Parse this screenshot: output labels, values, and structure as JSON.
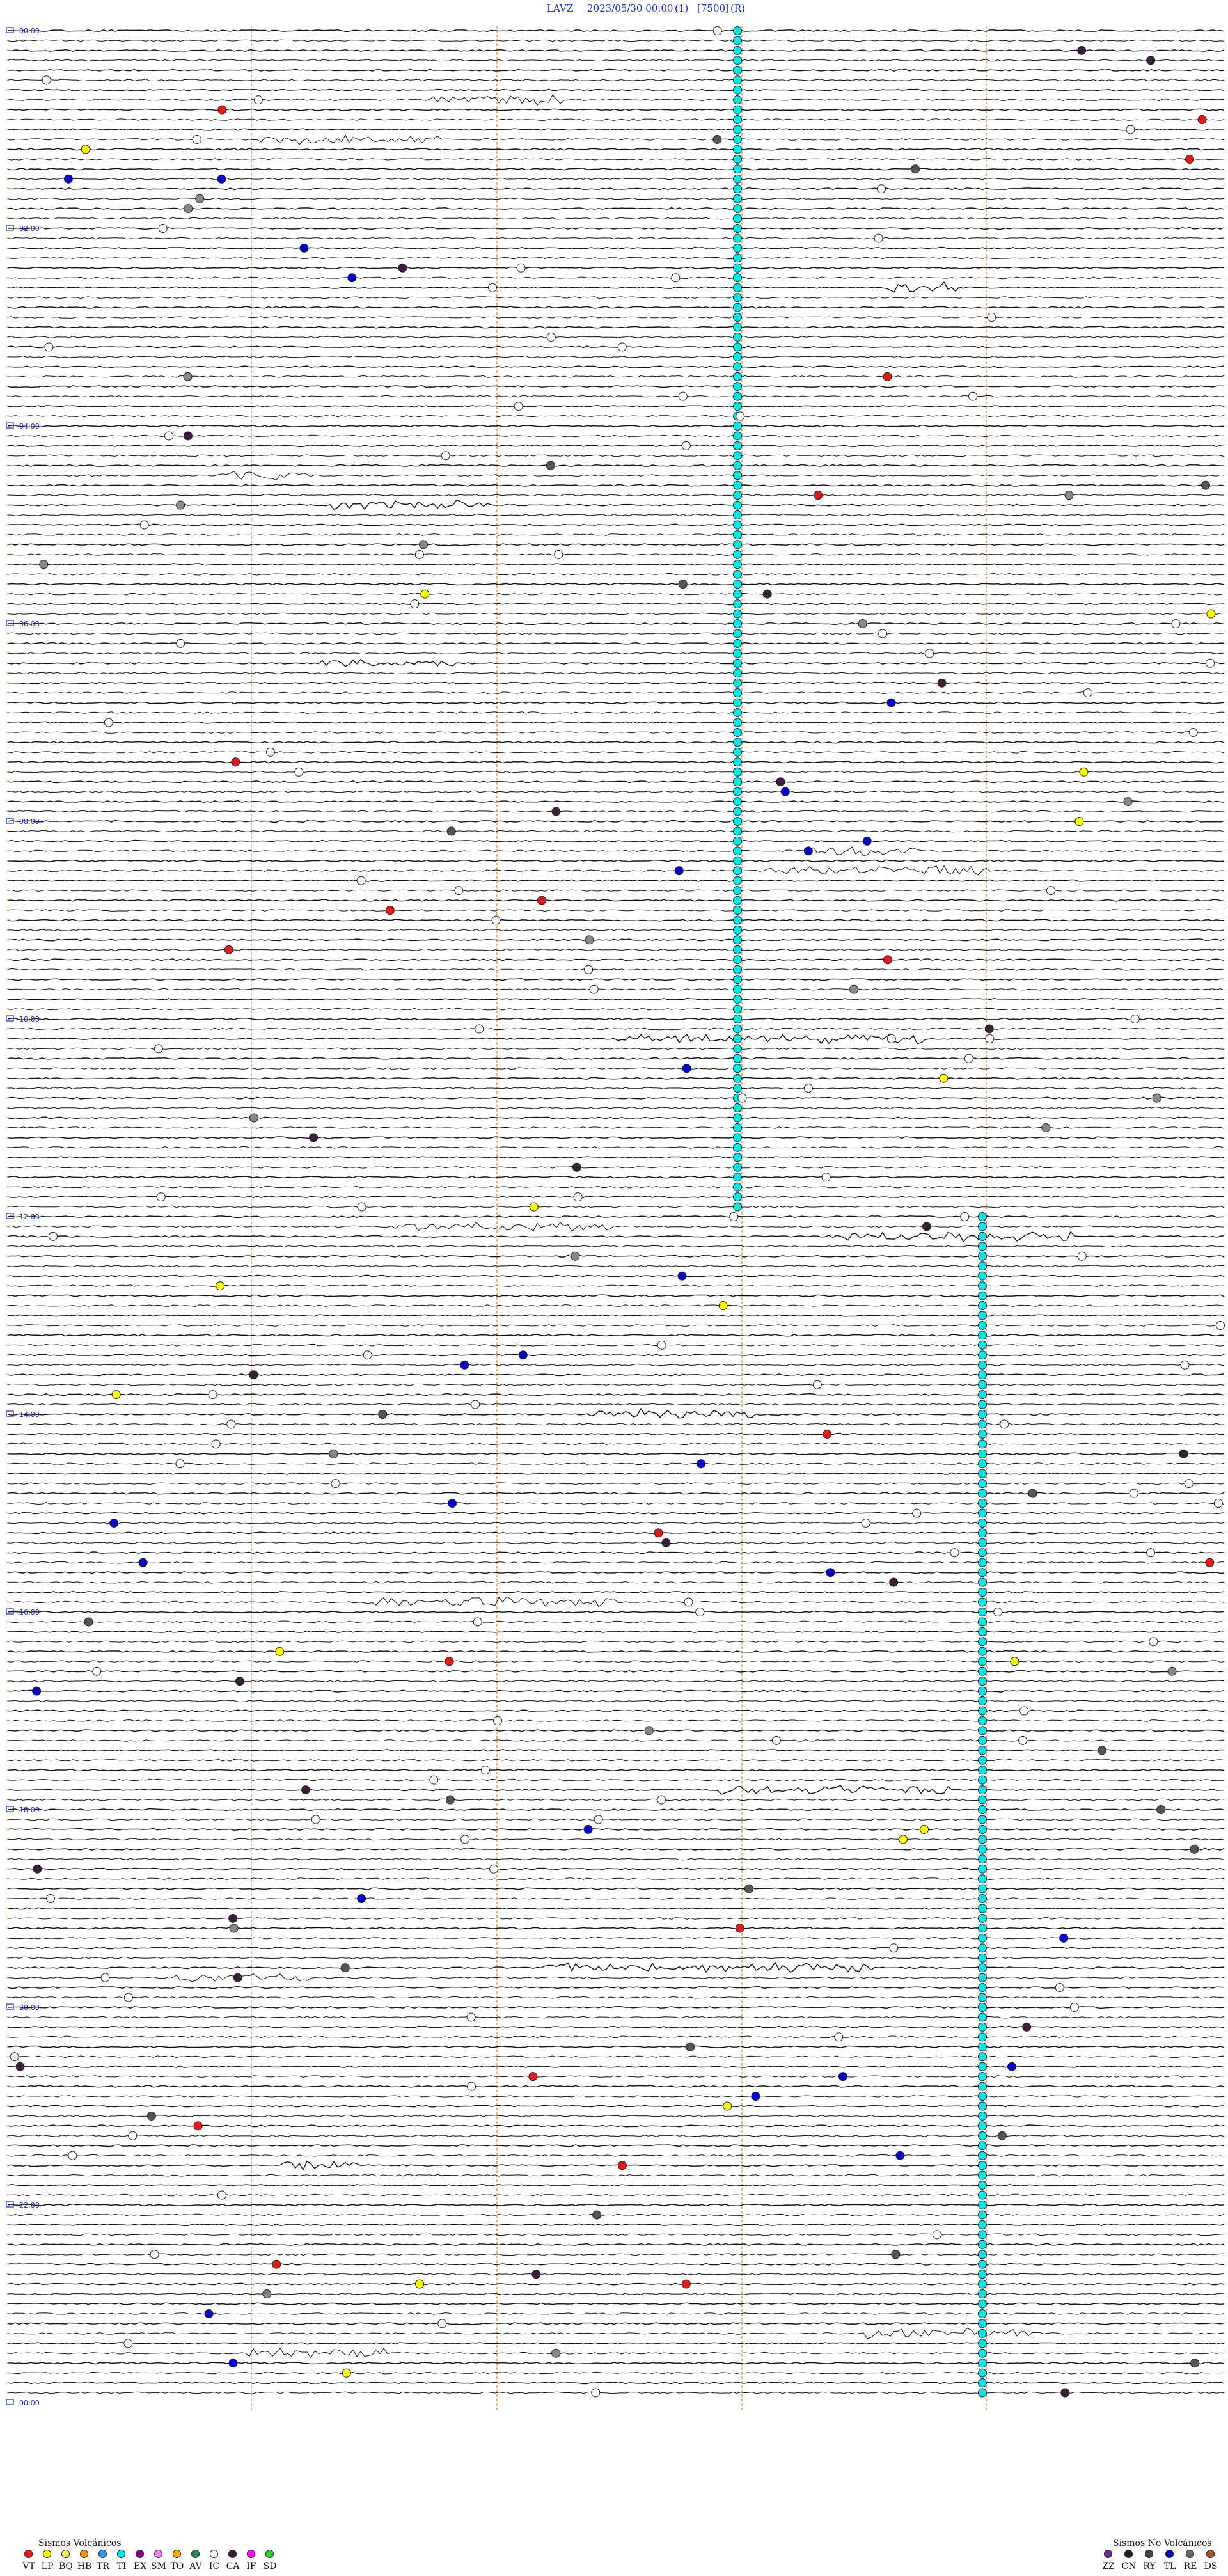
{
  "header": {
    "station": "LAVZ",
    "datetime": "2023/05/30 00:00",
    "channel": "(1)",
    "scale": "[7500]",
    "mode": "(R)"
  },
  "colors": {
    "trace": "#111111",
    "hour_label": "#1a2fb0",
    "minute_label": "#d2691e",
    "guide_line": "#e09a5a",
    "tremor_marker": "#00e5e5"
  },
  "hour_labels": [
    "00:00",
    "02:00",
    "04:00",
    "06:00",
    "08:00",
    "10:00",
    "12:00",
    "14:00",
    "16:00",
    "18:00",
    "20:00",
    "22:00",
    "00:00"
  ],
  "legend": {
    "volcanic_title": "Sismos Volcánicos",
    "volcanic": [
      {
        "code": "VT",
        "color": "#e31a1c"
      },
      {
        "code": "LP",
        "color": "#ffff00"
      },
      {
        "code": "BQ",
        "color": "#ffff66"
      },
      {
        "code": "HB",
        "color": "#ff8c00"
      },
      {
        "code": "TR",
        "color": "#3399ff"
      },
      {
        "code": "TI",
        "color": "#00e5e5"
      },
      {
        "code": "EX",
        "color": "#800080"
      },
      {
        "code": "SM",
        "color": "#ee82ee"
      },
      {
        "code": "TO",
        "color": "#ffa500"
      },
      {
        "code": "AV",
        "color": "#2e8b57"
      },
      {
        "code": "IC",
        "color": "#ffffff"
      },
      {
        "code": "CA",
        "color": "#3a1f3a"
      },
      {
        "code": "IF",
        "color": "#ff00ff"
      },
      {
        "code": "SD",
        "color": "#32cd32"
      }
    ],
    "nonvolcanic_title": "Sismos No Volcánicos",
    "nonvolcanic": [
      {
        "code": "ZZ",
        "color": "#6a2c91"
      },
      {
        "code": "CN",
        "color": "#222222"
      },
      {
        "code": "RY",
        "color": "#444444"
      },
      {
        "code": "TL",
        "color": "#0000cd"
      },
      {
        "code": "RE",
        "color": "#666666"
      },
      {
        "code": "DS",
        "color": "#a0522d"
      }
    ]
  }
}
